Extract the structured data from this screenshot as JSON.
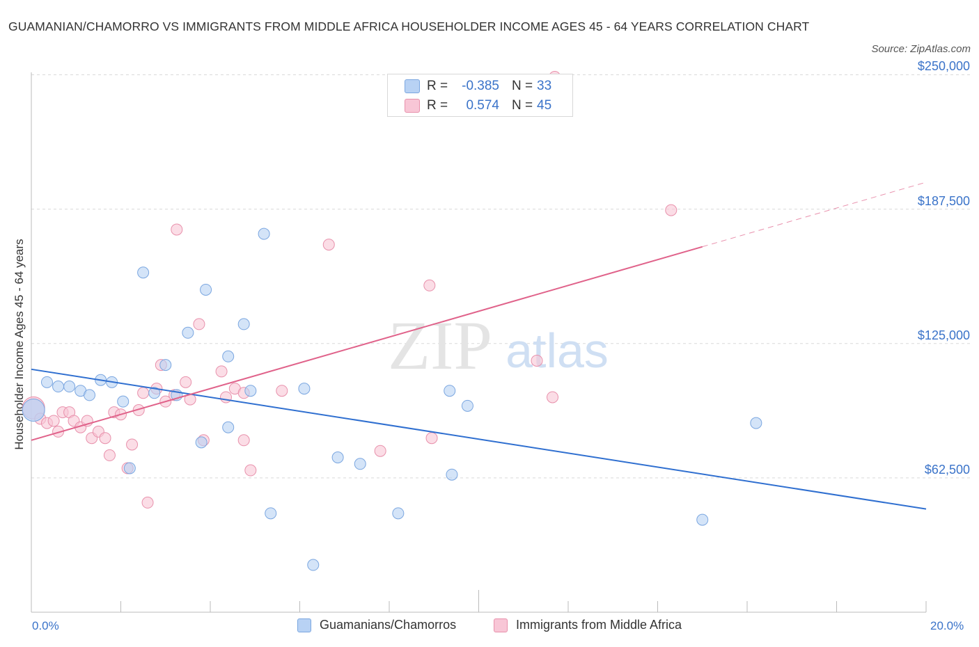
{
  "title": "GUAMANIAN/CHAMORRO VS IMMIGRANTS FROM MIDDLE AFRICA HOUSEHOLDER INCOME AGES 45 - 64 YEARS CORRELATION CHART",
  "source": "Source: ZipAtlas.com",
  "watermark": {
    "zip": "ZIP",
    "atlas": "atlas"
  },
  "legend": {
    "r_label": "R =",
    "n_label": "N =",
    "series1": {
      "r": "-0.385",
      "n": "33"
    },
    "series2": {
      "r": "0.574",
      "n": "45"
    }
  },
  "colors": {
    "series1_fill": "#b8d2f4",
    "series1_stroke": "#7aa6e0",
    "series1_line": "#2f6fd0",
    "series2_fill": "#f8c6d6",
    "series2_stroke": "#e890ab",
    "series2_line": "#e0628a",
    "axis_text": "#3a73c9",
    "grid": "#d9d9d9"
  },
  "chart_data": {
    "type": "scatter",
    "title": "GUAMANIAN/CHAMORRO VS IMMIGRANTS FROM MIDDLE AFRICA HOUSEHOLDER INCOME AGES 45 - 64 YEARS CORRELATION CHART",
    "xlabel": "",
    "ylabel": "Householder Income Ages 45 - 64 years",
    "xlim": [
      0,
      20
    ],
    "ylim": [
      0,
      255000
    ],
    "x_tick_labels": [
      "0.0%",
      "20.0%"
    ],
    "y_ticks": [
      62500,
      125000,
      187500,
      250000
    ],
    "y_tick_labels": [
      "$62,500",
      "$125,000",
      "$187,500",
      "$250,000"
    ],
    "grid": true,
    "legend_position": "top-center",
    "series": [
      {
        "name": "Guamanians/Chamorros",
        "r": -0.385,
        "n": 33,
        "trend": {
          "x": [
            0,
            20
          ],
          "y": [
            113000,
            48000
          ],
          "dashed_from": null
        },
        "points": [
          {
            "x": 0.05,
            "y": 94000,
            "big": true
          },
          {
            "x": 0.35,
            "y": 107000
          },
          {
            "x": 0.6,
            "y": 105000
          },
          {
            "x": 0.85,
            "y": 105000
          },
          {
            "x": 1.1,
            "y": 103000
          },
          {
            "x": 1.3,
            "y": 101000
          },
          {
            "x": 1.55,
            "y": 108000
          },
          {
            "x": 1.8,
            "y": 107000
          },
          {
            "x": 2.05,
            "y": 98000
          },
          {
            "x": 2.2,
            "y": 67000
          },
          {
            "x": 2.5,
            "y": 158000
          },
          {
            "x": 2.75,
            "y": 102000
          },
          {
            "x": 3.0,
            "y": 115000
          },
          {
            "x": 3.25,
            "y": 101000
          },
          {
            "x": 3.5,
            "y": 130000
          },
          {
            "x": 3.8,
            "y": 79000
          },
          {
            "x": 3.9,
            "y": 150000
          },
          {
            "x": 4.4,
            "y": 86000
          },
          {
            "x": 4.4,
            "y": 119000
          },
          {
            "x": 4.75,
            "y": 134000
          },
          {
            "x": 4.9,
            "y": 103000
          },
          {
            "x": 5.2,
            "y": 176000
          },
          {
            "x": 5.35,
            "y": 46000
          },
          {
            "x": 6.1,
            "y": 104000
          },
          {
            "x": 6.3,
            "y": 22000
          },
          {
            "x": 6.85,
            "y": 72000
          },
          {
            "x": 7.35,
            "y": 69000
          },
          {
            "x": 8.2,
            "y": 46000
          },
          {
            "x": 9.35,
            "y": 103000
          },
          {
            "x": 9.4,
            "y": 64000
          },
          {
            "x": 9.75,
            "y": 96000
          },
          {
            "x": 16.2,
            "y": 88000
          },
          {
            "x": 15.0,
            "y": 43000
          }
        ]
      },
      {
        "name": "Immigrants from Middle Africa",
        "r": 0.574,
        "n": 45,
        "trend": {
          "x": [
            0,
            20
          ],
          "y": [
            80000,
            200000
          ],
          "dashed_from": 15.0
        },
        "points": [
          {
            "x": 0.05,
            "y": 95000,
            "big": true
          },
          {
            "x": 0.2,
            "y": 90000
          },
          {
            "x": 0.35,
            "y": 88000
          },
          {
            "x": 0.5,
            "y": 89000
          },
          {
            "x": 0.6,
            "y": 84000
          },
          {
            "x": 0.7,
            "y": 93000
          },
          {
            "x": 0.85,
            "y": 93000
          },
          {
            "x": 0.95,
            "y": 89000
          },
          {
            "x": 1.1,
            "y": 86000
          },
          {
            "x": 1.25,
            "y": 89000
          },
          {
            "x": 1.35,
            "y": 81000
          },
          {
            "x": 1.5,
            "y": 84000
          },
          {
            "x": 1.65,
            "y": 81000
          },
          {
            "x": 1.75,
            "y": 73000
          },
          {
            "x": 1.85,
            "y": 93000
          },
          {
            "x": 2.0,
            "y": 92000
          },
          {
            "x": 2.15,
            "y": 67000
          },
          {
            "x": 2.25,
            "y": 78000
          },
          {
            "x": 2.4,
            "y": 94000
          },
          {
            "x": 2.5,
            "y": 102000
          },
          {
            "x": 2.6,
            "y": 51000
          },
          {
            "x": 2.8,
            "y": 104000
          },
          {
            "x": 2.9,
            "y": 115000
          },
          {
            "x": 3.0,
            "y": 98000
          },
          {
            "x": 3.25,
            "y": 178000
          },
          {
            "x": 3.45,
            "y": 107000
          },
          {
            "x": 3.55,
            "y": 99000
          },
          {
            "x": 3.75,
            "y": 134000
          },
          {
            "x": 3.85,
            "y": 80000
          },
          {
            "x": 4.25,
            "y": 112000
          },
          {
            "x": 4.35,
            "y": 100000
          },
          {
            "x": 4.55,
            "y": 104000
          },
          {
            "x": 4.75,
            "y": 80000
          },
          {
            "x": 4.9,
            "y": 66000
          },
          {
            "x": 4.75,
            "y": 102000
          },
          {
            "x": 5.6,
            "y": 103000
          },
          {
            "x": 6.65,
            "y": 171000
          },
          {
            "x": 7.8,
            "y": 75000
          },
          {
            "x": 8.9,
            "y": 152000
          },
          {
            "x": 8.95,
            "y": 81000
          },
          {
            "x": 11.3,
            "y": 117000
          },
          {
            "x": 11.65,
            "y": 100000
          },
          {
            "x": 11.7,
            "y": 249000
          },
          {
            "x": 14.3,
            "y": 187000
          },
          {
            "x": 3.2,
            "y": 101000
          }
        ]
      }
    ]
  },
  "bottom_legend": [
    "Guamanians/Chamorros",
    "Immigrants from Middle Africa"
  ]
}
